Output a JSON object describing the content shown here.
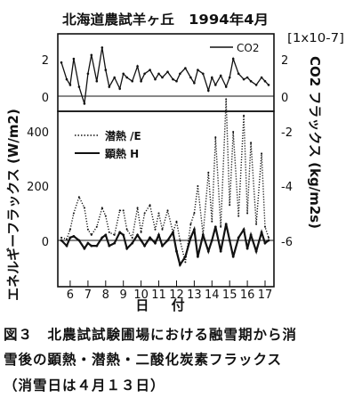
{
  "figure": {
    "title": "北海道農試羊ヶ丘",
    "date": "1994年4月",
    "caption_lines": [
      "図３　北農試試験圃場における融雪期から消",
      "雪後の顕熱・潜熱・二酸化炭素フラックス",
      "（消雪日は４月１３日）"
    ]
  },
  "chart_data": [
    {
      "type": "line",
      "title": "北海道農試羊ヶ丘　1994年4月",
      "xlabel": "日 付",
      "ylabel_right": "CO2 フラックス (kg/m2s)",
      "scale_note": "[1x10-7]",
      "y_inverted": true,
      "ylim": [
        -0.5,
        3
      ],
      "yticks": [
        "2",
        "0"
      ],
      "yticks_right": [
        "2",
        "0"
      ],
      "legend": {
        "position": "top-right",
        "entries": [
          "CO2"
        ]
      },
      "series": [
        {
          "name": "CO2",
          "x": [
            5.5,
            5.8,
            6.0,
            6.2,
            6.5,
            6.8,
            7.0,
            7.2,
            7.5,
            7.8,
            8.0,
            8.2,
            8.5,
            8.8,
            9.0,
            9.2,
            9.5,
            9.8,
            10.0,
            10.2,
            10.5,
            10.8,
            11.0,
            11.2,
            11.5,
            11.8,
            12.0,
            12.2,
            12.5,
            12.8,
            13.0,
            13.2,
            13.5,
            13.8,
            14.0,
            14.2,
            14.5,
            14.8,
            15.0,
            15.2,
            15.5,
            15.8,
            16.0,
            16.2,
            16.5,
            16.8,
            17.0,
            17.2
          ],
          "y": [
            1.8,
            0.9,
            0.6,
            2.0,
            0.5,
            -0.4,
            1.2,
            2.2,
            0.8,
            2.6,
            1.4,
            0.5,
            1.0,
            0.4,
            1.2,
            1.0,
            0.8,
            1.6,
            0.8,
            1.2,
            1.4,
            0.9,
            1.2,
            1.0,
            1.3,
            0.9,
            0.8,
            1.2,
            1.5,
            1.0,
            0.7,
            1.4,
            1.2,
            0.3,
            1.0,
            0.6,
            1.1,
            0.5,
            1.0,
            2.0,
            1.2,
            0.9,
            1.0,
            0.8,
            0.6,
            1.0,
            0.8,
            0.6
          ]
        }
      ]
    },
    {
      "type": "line",
      "xlabel": "日 付",
      "ylabel": "エネルギーフラックス (W/m2)",
      "ylabel_right": "CO2 フラックス (kg/m2s)",
      "ylim": [
        -100,
        560
      ],
      "yticks": [
        "400",
        "200",
        "0"
      ],
      "yticks_right": [
        "-2",
        "-4",
        "-6"
      ],
      "xlim": [
        5.3,
        17.5
      ],
      "xticks": [
        "6",
        "7",
        "8",
        "9",
        "10",
        "11",
        "12",
        "13",
        "14",
        "15",
        "16",
        "17"
      ],
      "legend": {
        "position": "top-center",
        "entries": [
          "潜熱 /E",
          "顕熱 H"
        ]
      },
      "series": [
        {
          "name": "潜熱 /E",
          "style": "dotted",
          "x": [
            5.5,
            5.8,
            6.0,
            6.2,
            6.5,
            6.8,
            7.0,
            7.2,
            7.5,
            7.8,
            8.0,
            8.2,
            8.5,
            8.8,
            9.0,
            9.2,
            9.5,
            9.8,
            10.0,
            10.2,
            10.5,
            10.8,
            11.0,
            11.2,
            11.5,
            11.8,
            12.0,
            12.2,
            12.5,
            12.8,
            13.0,
            13.2,
            13.5,
            13.8,
            14.0,
            14.2,
            14.5,
            14.8,
            15.0,
            15.2,
            15.5,
            15.8,
            16.0,
            16.2,
            16.5,
            16.8,
            17.0,
            17.2
          ],
          "y": [
            10,
            5,
            40,
            100,
            160,
            120,
            40,
            20,
            50,
            120,
            90,
            30,
            20,
            110,
            110,
            40,
            10,
            120,
            30,
            100,
            130,
            40,
            100,
            40,
            110,
            30,
            70,
            0,
            -80,
            60,
            100,
            200,
            20,
            250,
            70,
            380,
            50,
            520,
            130,
            400,
            90,
            460,
            100,
            360,
            60,
            320,
            50,
            10
          ]
        },
        {
          "name": "顕熱 H",
          "style": "solid",
          "x": [
            5.5,
            5.8,
            6.0,
            6.2,
            6.5,
            6.8,
            7.0,
            7.2,
            7.5,
            7.8,
            8.0,
            8.2,
            8.5,
            8.8,
            9.0,
            9.2,
            9.5,
            9.8,
            10.0,
            10.2,
            10.5,
            10.8,
            11.0,
            11.2,
            11.5,
            11.8,
            12.0,
            12.2,
            12.5,
            12.8,
            13.0,
            13.2,
            13.5,
            13.8,
            14.0,
            14.2,
            14.5,
            14.8,
            15.0,
            15.2,
            15.5,
            15.8,
            16.0,
            16.2,
            16.5,
            16.8,
            17.0,
            17.2
          ],
          "y": [
            0,
            -20,
            10,
            15,
            0,
            -30,
            -10,
            -20,
            -20,
            10,
            20,
            -20,
            -10,
            30,
            20,
            -30,
            -10,
            20,
            0,
            -20,
            10,
            -10,
            20,
            -20,
            0,
            30,
            -40,
            -90,
            -60,
            10,
            40,
            -60,
            20,
            -40,
            0,
            50,
            -40,
            60,
            0,
            -60,
            10,
            40,
            -30,
            20,
            -40,
            30,
            -10,
            0
          ]
        }
      ]
    }
  ]
}
